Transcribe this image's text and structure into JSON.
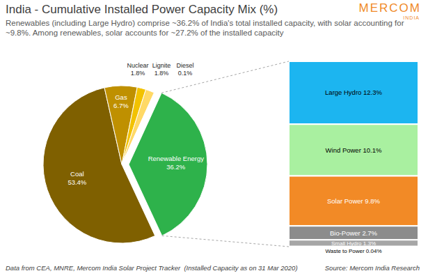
{
  "chart_data": [
    {
      "type": "pie",
      "title": "India - Cumulative Installed Power Capacity Mix (%)",
      "subtitle": "Renewables (including Large Hydro) comprise ~36.2% of India's total installed capacity, with solar accounting for ~9.8%. Among renewables, solar accounts for ~27.2% of the installed capacity",
      "categories": [
        "Coal",
        "Gas",
        "Nuclear",
        "Lignite",
        "Diesel",
        "Renewable Energy"
      ],
      "values": [
        53.4,
        6.7,
        1.8,
        1.8,
        0.1,
        36.2
      ],
      "value_labels": [
        "53.4%",
        "6.7%",
        "1.8%",
        "1.8%",
        "0.1%",
        "36.2%"
      ],
      "colors": [
        "#7f6000",
        "#bf9000",
        "#f2c200",
        "#ffd966",
        "#fff2cc",
        "#2eb24b"
      ],
      "data_labels": true
    },
    {
      "type": "bar",
      "stacked": true,
      "categories": [
        null
      ],
      "series": [
        {
          "name": "Large Hydro",
          "color": "#1cb5f0",
          "values": [
            12.3
          ],
          "value_labels": [
            "12.3%"
          ]
        },
        {
          "name": "Wind Power",
          "color": "#a9f0a0",
          "values": [
            10.1
          ],
          "value_labels": [
            "10.1%"
          ]
        },
        {
          "name": "Solar Power",
          "color": "#f28a26",
          "values": [
            9.8
          ],
          "value_labels": [
            "9.8%"
          ]
        },
        {
          "name": "Bio-Power",
          "color": "#8c8c8c",
          "values": [
            2.7
          ],
          "value_labels": [
            "2.7%"
          ]
        },
        {
          "name": "Small Hydro",
          "color": "#a6a6a6",
          "values": [
            1.3
          ],
          "value_labels": [
            "1.3%"
          ]
        },
        {
          "name": "Waste to Power",
          "color": "#d0d0d0",
          "values": [
            0.04
          ],
          "value_labels": [
            "0.04%"
          ]
        }
      ],
      "data_labels": true,
      "tick_labels": false
    }
  ],
  "logo": "MERCOM",
  "logo_subtitle": "INDIA",
  "note": "Data from CEA, MNRE, Mercom India Solar Project Tracker  (Installed Capacity as on 31 Mar 2020)",
  "source": "Source: Mercom India Research"
}
